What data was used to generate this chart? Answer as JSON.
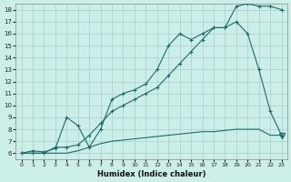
{
  "xlabel": "Humidex (Indice chaleur)",
  "bg_color": "#cceee8",
  "grid_color": "#aacccc",
  "line_color": "#1a6b6b",
  "xlim": [
    -0.5,
    23.5
  ],
  "ylim": [
    5.5,
    18.5
  ],
  "xticks": [
    0,
    1,
    2,
    3,
    4,
    5,
    6,
    7,
    8,
    9,
    10,
    11,
    12,
    13,
    14,
    15,
    16,
    17,
    18,
    19,
    20,
    21,
    22,
    23
  ],
  "yticks": [
    6,
    7,
    8,
    9,
    10,
    11,
    12,
    13,
    14,
    15,
    16,
    17,
    18
  ],
  "curve_zigzag_x": [
    0,
    1,
    2,
    3,
    4,
    5,
    6,
    7,
    8,
    9,
    10,
    11,
    12,
    13,
    14,
    15,
    16,
    17,
    18,
    19,
    20,
    21,
    22,
    23
  ],
  "curve_zigzag_y": [
    6,
    6.2,
    6.1,
    6.4,
    9.0,
    8.3,
    6.5,
    8.0,
    10.5,
    11.0,
    11.3,
    11.8,
    13.0,
    15.0,
    16.0,
    15.5,
    16.0,
    16.5,
    16.5,
    18.3,
    18.5,
    18.3,
    18.3,
    18.0
  ],
  "curve_diagonal_x": [
    0,
    1,
    2,
    3,
    4,
    5,
    6,
    7,
    8,
    9,
    10,
    11,
    12,
    13,
    14,
    15,
    16,
    17,
    18,
    19,
    20,
    21,
    22,
    23
  ],
  "curve_diagonal_y": [
    6,
    6,
    6,
    6.5,
    6.5,
    6.7,
    7.5,
    8.5,
    9.5,
    10.0,
    10.5,
    11.0,
    11.5,
    12.5,
    13.5,
    14.5,
    15.5,
    16.5,
    16.5,
    17.0,
    16.0,
    13.0,
    9.5,
    7.5
  ],
  "curve_flat_x": [
    0,
    1,
    2,
    3,
    4,
    5,
    6,
    7,
    8,
    9,
    10,
    11,
    12,
    13,
    14,
    15,
    16,
    17,
    18,
    19,
    20,
    21,
    22,
    23
  ],
  "curve_flat_y": [
    6,
    6,
    6,
    6,
    6,
    6.2,
    6.5,
    6.8,
    7.0,
    7.1,
    7.2,
    7.3,
    7.4,
    7.5,
    7.6,
    7.7,
    7.8,
    7.8,
    7.9,
    8.0,
    8.0,
    8.0,
    7.5,
    7.5
  ]
}
